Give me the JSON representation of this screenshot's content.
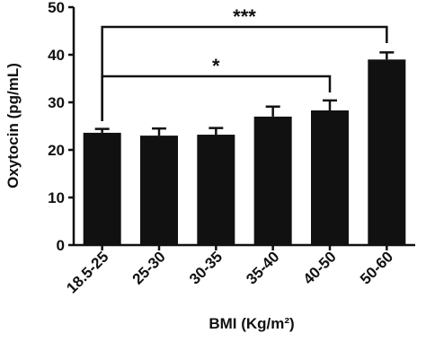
{
  "chart_data": {
    "type": "bar",
    "x_label": "BMI (Kg/m²)",
    "y_label": "Oxytocin (pg/mL)",
    "categories": [
      "18.5-25",
      "25-30",
      "30-35",
      "35-40",
      "40-50",
      "50-60"
    ],
    "values": [
      23.6,
      23.0,
      23.2,
      27.0,
      28.3,
      39.0
    ],
    "errors": [
      0.8,
      1.5,
      1.4,
      2.1,
      2.1,
      1.5
    ],
    "color": "#111111",
    "ylim": [
      0,
      50
    ],
    "yticks": [
      0,
      10,
      20,
      30,
      40,
      50
    ],
    "annotations": [
      {
        "text": "***"
      },
      {
        "text": "*"
      }
    ]
  }
}
